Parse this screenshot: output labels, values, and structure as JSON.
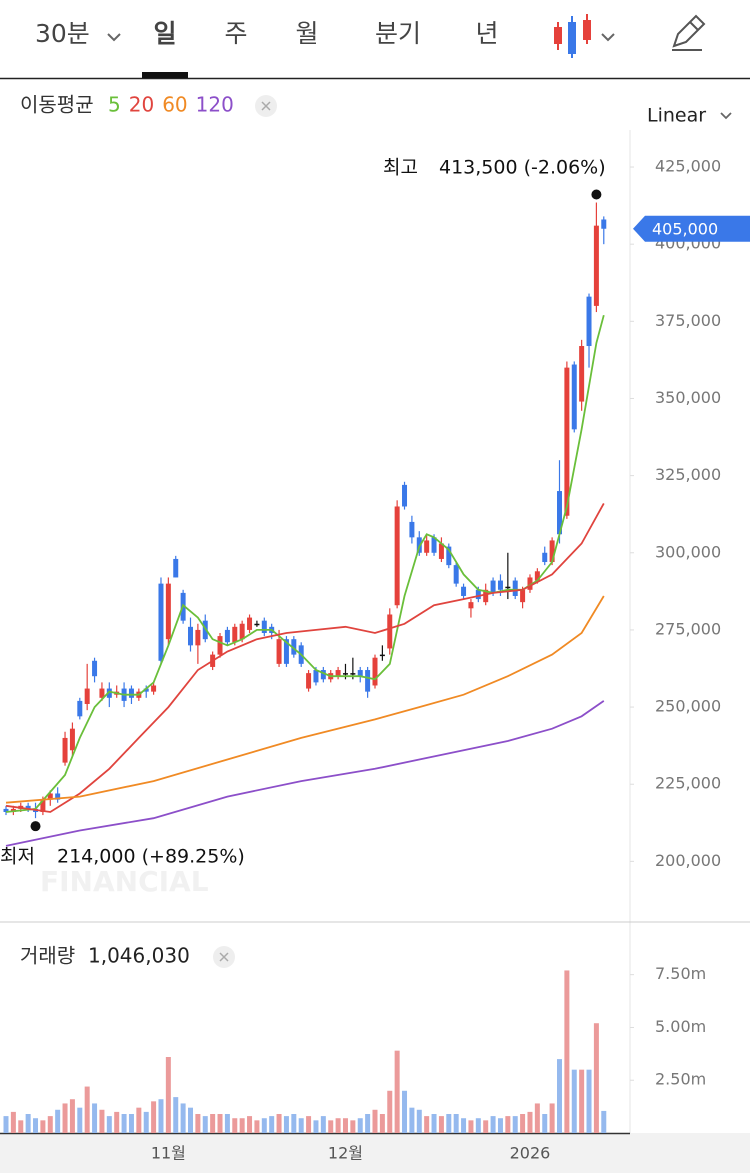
{
  "tabs": [
    "30분",
    "일",
    "주",
    "월",
    "분기",
    "년"
  ],
  "selected_tab": 1,
  "ma_title": "이동평균",
  "scale_label": "Linear",
  "watermark": "FINANCIAL",
  "chart_data": [
    {
      "type": "candlestick",
      "up_color": "#e5413b",
      "down_color": "#3a78e8",
      "flat_color": "#111111",
      "categories": [
        null,
        null,
        null,
        null,
        null,
        null,
        null,
        null,
        null,
        null,
        null,
        null,
        null,
        null,
        null,
        null,
        null,
        null,
        null,
        null,
        null,
        null,
        "11월",
        null,
        null,
        null,
        null,
        null,
        null,
        null,
        null,
        null,
        null,
        null,
        null,
        null,
        null,
        null,
        null,
        null,
        null,
        null,
        null,
        null,
        null,
        null,
        "12월",
        null,
        null,
        null,
        null,
        null,
        null,
        null,
        null,
        null,
        null,
        null,
        null,
        null,
        null,
        null,
        null,
        null,
        null,
        null,
        null,
        null,
        null,
        null,
        null,
        "2026",
        null,
        null,
        null,
        null,
        null,
        null,
        null,
        null,
        null,
        null
      ],
      "ohlc": [
        [
          217000,
          218000,
          215000,
          216000
        ],
        [
          216000,
          218000,
          215000,
          217000
        ],
        [
          217000,
          219000,
          216000,
          218000
        ],
        [
          218000,
          219000,
          216000,
          217000
        ],
        [
          217000,
          219000,
          214000,
          216000
        ],
        [
          216000,
          221000,
          215000,
          220000
        ],
        [
          220000,
          223000,
          218000,
          222000
        ],
        [
          222000,
          224000,
          219000,
          220000
        ],
        [
          232000,
          242000,
          231000,
          240000
        ],
        [
          236000,
          245000,
          234000,
          243000
        ],
        [
          252000,
          253000,
          246000,
          247000
        ],
        [
          251000,
          264000,
          249000,
          256000
        ],
        [
          265000,
          266000,
          258000,
          260000
        ],
        [
          253000,
          258000,
          252000,
          256000
        ],
        [
          256000,
          258000,
          250000,
          253000
        ],
        [
          254000,
          257000,
          253000,
          255000
        ],
        [
          256000,
          258000,
          250000,
          252000
        ],
        [
          256000,
          257000,
          251000,
          253000
        ],
        [
          253000,
          256000,
          252000,
          255000
        ],
        [
          256000,
          257000,
          253000,
          255000
        ],
        [
          255000,
          258000,
          254000,
          257000
        ],
        [
          290000,
          292000,
          264000,
          265000
        ],
        [
          272000,
          292000,
          270000,
          290000
        ],
        [
          298000,
          299000,
          292000,
          292000
        ],
        [
          287000,
          288000,
          277000,
          278000
        ],
        [
          276000,
          279000,
          268000,
          270000
        ],
        [
          270000,
          277000,
          264000,
          275000
        ],
        [
          278000,
          280000,
          271000,
          272000
        ],
        [
          263000,
          268000,
          262000,
          267000
        ],
        [
          267000,
          274000,
          266000,
          273000
        ],
        [
          275000,
          276000,
          270000,
          271000
        ],
        [
          271000,
          277000,
          270000,
          276000
        ],
        [
          272000,
          278000,
          271000,
          277000
        ],
        [
          275000,
          280000,
          274000,
          279000
        ],
        [
          277000,
          278000,
          276000,
          277000
        ],
        [
          278000,
          279000,
          273000,
          274000
        ],
        [
          276000,
          277000,
          272000,
          274000
        ],
        [
          264000,
          275000,
          263000,
          272000
        ],
        [
          272000,
          273000,
          263000,
          264000
        ],
        [
          272000,
          273000,
          266000,
          267000
        ],
        [
          270000,
          271000,
          263000,
          264000
        ],
        [
          256000,
          262000,
          255000,
          261000
        ],
        [
          262000,
          263000,
          257000,
          258000
        ],
        [
          262000,
          263000,
          258000,
          259000
        ],
        [
          259000,
          262000,
          258000,
          261000
        ],
        [
          260000,
          263000,
          259000,
          262000
        ],
        [
          261000,
          264000,
          259000,
          261000
        ],
        [
          261000,
          266000,
          259000,
          261000
        ],
        [
          262000,
          263000,
          258000,
          260000
        ],
        [
          262000,
          263000,
          253000,
          255000
        ],
        [
          257000,
          267000,
          256000,
          266000
        ],
        [
          267000,
          270000,
          265000,
          267000
        ],
        [
          269000,
          282000,
          267000,
          280000
        ],
        [
          283000,
          317000,
          282000,
          315000
        ],
        [
          322000,
          323000,
          314000,
          315000
        ],
        [
          310000,
          312000,
          303000,
          305000
        ],
        [
          305000,
          307000,
          299000,
          300000
        ],
        [
          300000,
          306000,
          299000,
          304000
        ],
        [
          305000,
          306000,
          299000,
          300000
        ],
        [
          298000,
          305000,
          297000,
          303000
        ],
        [
          302000,
          303000,
          295000,
          296000
        ],
        [
          296000,
          297000,
          289000,
          290000
        ],
        [
          289000,
          290000,
          285000,
          286000
        ],
        [
          282000,
          285000,
          279000,
          284000
        ],
        [
          288000,
          289000,
          284000,
          285000
        ],
        [
          284000,
          290000,
          283000,
          288000
        ],
        [
          291000,
          292000,
          286000,
          287000
        ],
        [
          291000,
          293000,
          286000,
          288000
        ],
        [
          289000,
          300000,
          285000,
          289000
        ],
        [
          291000,
          292000,
          285000,
          286000
        ],
        [
          284000,
          289000,
          282000,
          288000
        ],
        [
          288000,
          293000,
          287000,
          292000
        ],
        [
          291000,
          295000,
          290000,
          294000
        ],
        [
          300000,
          302000,
          296000,
          297000
        ],
        [
          297000,
          305000,
          296000,
          304000
        ],
        [
          320000,
          330000,
          303000,
          306000
        ],
        [
          312000,
          362000,
          311000,
          360000
        ],
        [
          361000,
          362000,
          339000,
          340000
        ],
        [
          349000,
          369000,
          346000,
          367000
        ],
        [
          383000,
          384000,
          360000,
          367000
        ],
        [
          380000,
          413500,
          378000,
          406000
        ],
        [
          408000,
          409000,
          400000,
          405000
        ]
      ],
      "series": [
        {
          "name": "5",
          "color": "#6abf3a",
          "x": [
            0,
            4,
            8,
            10,
            12,
            14,
            16,
            18,
            20,
            22,
            24,
            26,
            28,
            30,
            32,
            34,
            36,
            38,
            40,
            42,
            44,
            46,
            48,
            50,
            52,
            54,
            56,
            57,
            58,
            60,
            62,
            64,
            66,
            68,
            70,
            72,
            74,
            76,
            78,
            80,
            81
          ],
          "values": [
            216000,
            217000,
            228000,
            240000,
            250000,
            255000,
            254000,
            254000,
            258000,
            270000,
            283000,
            279000,
            272000,
            270000,
            272000,
            275000,
            275000,
            271000,
            267000,
            262000,
            260000,
            260000,
            260000,
            259000,
            264000,
            286000,
            302000,
            306000,
            305000,
            301000,
            293000,
            288000,
            287000,
            288000,
            288000,
            291000,
            297000,
            315000,
            340000,
            368000,
            377000
          ]
        },
        {
          "name": "20",
          "color": "#e0443e",
          "x": [
            0,
            6,
            10,
            14,
            18,
            22,
            26,
            30,
            34,
            38,
            42,
            46,
            50,
            54,
            58,
            62,
            66,
            70,
            74,
            78,
            81
          ],
          "values": [
            218000,
            216000,
            222000,
            230000,
            240000,
            250000,
            262000,
            268000,
            272000,
            274000,
            275000,
            276000,
            274000,
            277000,
            283000,
            285000,
            287000,
            288000,
            293000,
            303000,
            316000
          ]
        },
        {
          "name": "60",
          "color": "#f08a24",
          "x": [
            0,
            10,
            20,
            30,
            40,
            50,
            56,
            62,
            68,
            74,
            78,
            81
          ],
          "values": [
            219000,
            221000,
            226000,
            233000,
            240000,
            246000,
            250000,
            254000,
            260000,
            267000,
            274000,
            286000
          ]
        },
        {
          "name": "120",
          "color": "#8c4fc9",
          "x": [
            0,
            10,
            20,
            30,
            40,
            50,
            56,
            62,
            68,
            74,
            78,
            81
          ],
          "values": [
            205000,
            210000,
            214000,
            221000,
            226000,
            230000,
            233000,
            236000,
            239000,
            243000,
            247000,
            252000
          ]
        }
      ],
      "ylim": [
        181000,
        437000
      ],
      "yticks": [
        {
          "value": 200000,
          "label": "200,000"
        },
        {
          "value": 225000,
          "label": "225,000"
        },
        {
          "value": 250000,
          "label": "250,000"
        },
        {
          "value": 275000,
          "label": "275,000"
        },
        {
          "value": 300000,
          "label": "300,000"
        },
        {
          "value": 325000,
          "label": "325,000"
        },
        {
          "value": 350000,
          "label": "350,000"
        },
        {
          "value": 375000,
          "label": "375,000"
        },
        {
          "value": 400000,
          "label": "400,000"
        },
        {
          "value": 425000,
          "label": "425,000"
        }
      ],
      "last_price_label": "405,000",
      "annotations": [
        {
          "label": "최고",
          "text": "413,500 (-2.06%)"
        },
        {
          "label": "최저",
          "text": "214,000 (+89.25%)"
        }
      ]
    },
    {
      "type": "bar",
      "title": "거래량",
      "last_value_label": "1,046,030",
      "up_color": "#eb9a9a",
      "down_color": "#95b9ee",
      "values": [
        800000,
        1000000,
        600000,
        900000,
        700000,
        600000,
        800000,
        1100000,
        1400000,
        1600000,
        1200000,
        2200000,
        1400000,
        1100000,
        800000,
        1000000,
        900000,
        900000,
        1200000,
        1000000,
        1500000,
        1600000,
        3600000,
        1700000,
        1400000,
        1200000,
        900000,
        800000,
        900000,
        900000,
        900000,
        700000,
        700000,
        800000,
        600000,
        700000,
        800000,
        900000,
        800000,
        900000,
        700000,
        800000,
        600000,
        800000,
        600000,
        700000,
        700000,
        600000,
        700000,
        900000,
        1100000,
        900000,
        2000000,
        3900000,
        2000000,
        1200000,
        1100000,
        800000,
        900000,
        800000,
        900000,
        900000,
        700000,
        600000,
        700000,
        600000,
        800000,
        700000,
        800000,
        800000,
        900000,
        1000000,
        1400000,
        900000,
        1400000,
        3500000,
        7700000,
        3000000,
        3000000,
        3000000,
        5200000,
        1046030
      ],
      "ylim": [
        0,
        9000000
      ],
      "yticks": [
        {
          "value": 2500000,
          "label": "2.50m"
        },
        {
          "value": 5000000,
          "label": "5.00m"
        },
        {
          "value": 7500000,
          "label": "7.50m"
        }
      ]
    }
  ]
}
